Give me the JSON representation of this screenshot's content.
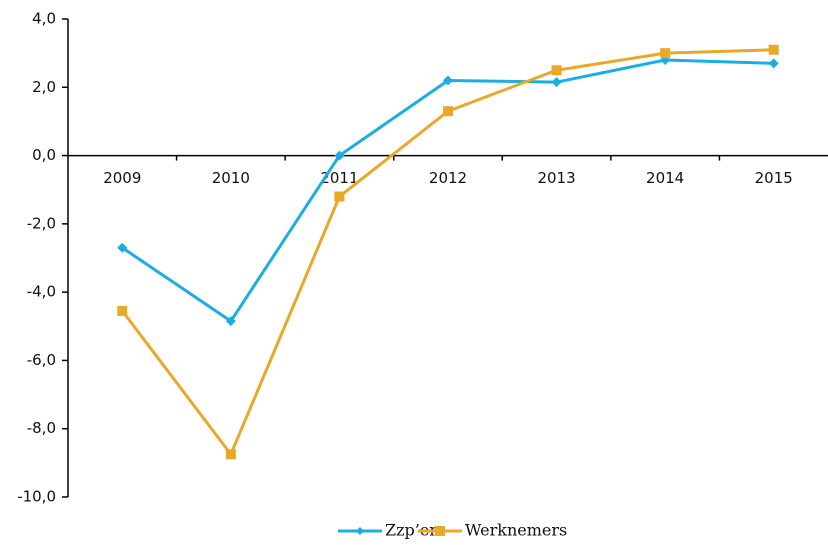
{
  "chart_data": {
    "type": "line",
    "categories": [
      "2009",
      "2010",
      "2011",
      "2012",
      "2013",
      "2014",
      "2015"
    ],
    "series": [
      {
        "name": "Zzp’ers",
        "color": "#1bade3",
        "marker": "diamond",
        "values": [
          -2.7,
          -4.85,
          0.0,
          2.2,
          2.15,
          2.8,
          2.7
        ]
      },
      {
        "name": "Werknemers",
        "color": "#e9a828",
        "marker": "square",
        "values": [
          -4.55,
          -8.75,
          -1.2,
          1.3,
          2.5,
          3.0,
          3.1
        ]
      }
    ],
    "ylim": [
      -10,
      4
    ],
    "yticks": [
      {
        "value": -10,
        "label": "-10,0"
      },
      {
        "value": -8,
        "label": "-8,0"
      },
      {
        "value": -6,
        "label": "-6,0"
      },
      {
        "value": -4,
        "label": "-4,0"
      },
      {
        "value": -2,
        "label": "-2,0"
      },
      {
        "value": 0,
        "label": "0,0"
      },
      {
        "value": 2,
        "label": "2,0"
      },
      {
        "value": 4,
        "label": "4,0"
      }
    ],
    "grid": false,
    "legend": "bottom"
  }
}
